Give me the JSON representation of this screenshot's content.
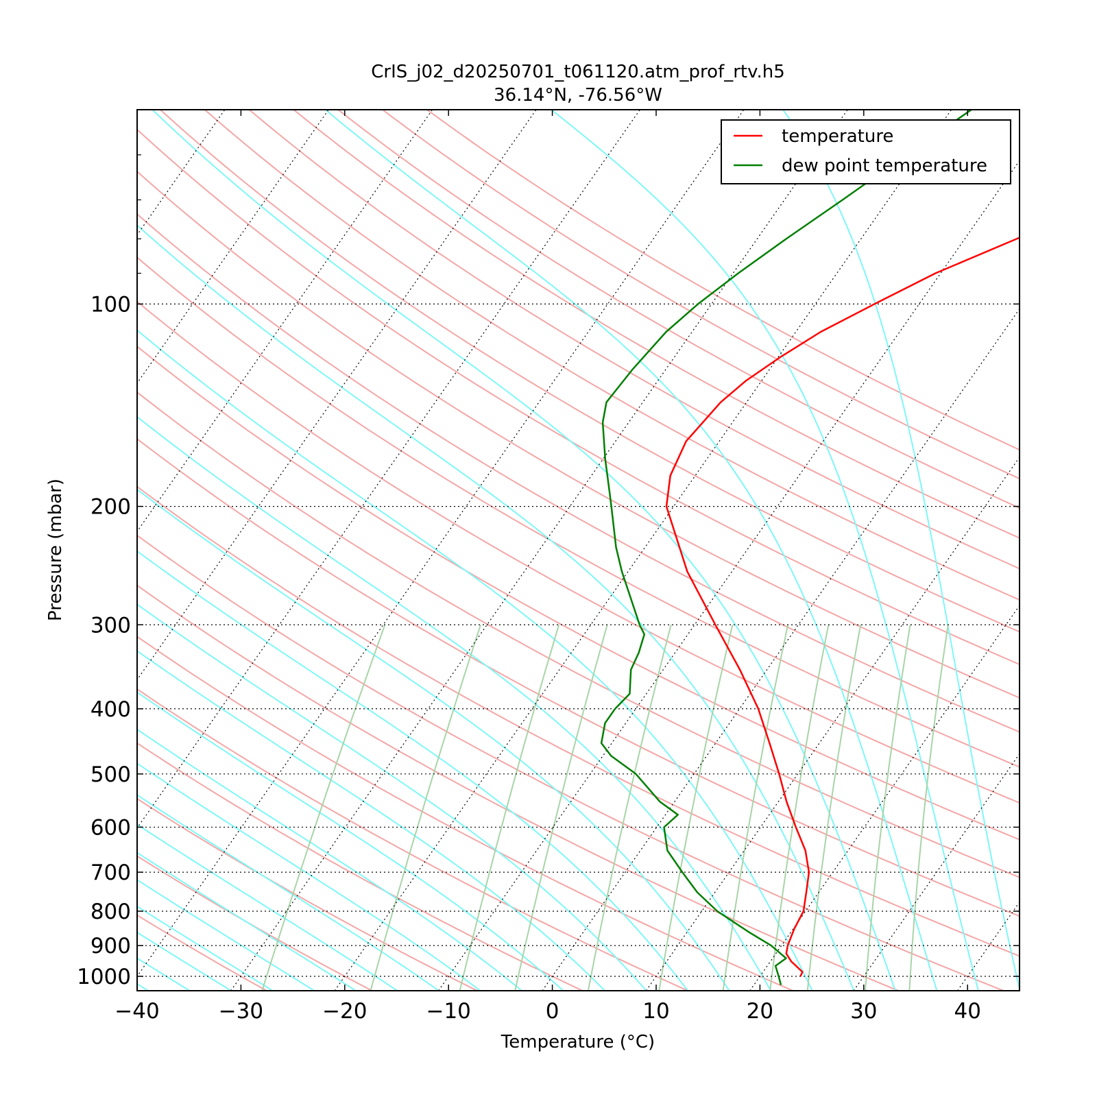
{
  "chart_data": {
    "type": "line",
    "chart_kind": "skew-T log-p",
    "title": "CrIS_j02_d20250701_t061120.atm_prof_rtv.h5",
    "subtitle": "36.14°N, -76.56°W",
    "xlabel": "Temperature (°C)",
    "ylabel": "Pressure (mbar)",
    "xlim": [
      -40,
      45
    ],
    "ylim": [
      1050,
      50
    ],
    "y_scale": "log",
    "xticks": [
      -40,
      -30,
      -20,
      -10,
      0,
      10,
      20,
      30,
      40
    ],
    "xtick_labels": [
      "−40",
      "−30",
      "−20",
      "−10",
      "0",
      "10",
      "20",
      "30",
      "40"
    ],
    "yticks": [
      100,
      200,
      300,
      400,
      500,
      600,
      700,
      800,
      900,
      1000
    ],
    "ytick_labels": [
      "100",
      "200",
      "300",
      "400",
      "500",
      "600",
      "700",
      "800",
      "900",
      "1000"
    ],
    "grid": "dotted",
    "legend_position": "top-right",
    "colors": {
      "temperature": "#ff0000",
      "dewpoint": "#007f00",
      "dry_adiabat": "#f4a6a6",
      "moist_adiabat": "#7ff7f7",
      "mixing_ratio": "#a8d4a8",
      "grid": "#000000"
    },
    "series": [
      {
        "name": "temperature",
        "points": [
          {
            "p": 1000,
            "t": 23.9
          },
          {
            "p": 985,
            "t": 23.8
          },
          {
            "p": 950,
            "t": 22.0
          },
          {
            "p": 925,
            "t": 21.0
          },
          {
            "p": 900,
            "t": 20.6
          },
          {
            "p": 850,
            "t": 20.1
          },
          {
            "p": 800,
            "t": 19.8
          },
          {
            "p": 750,
            "t": 18.8
          },
          {
            "p": 700,
            "t": 17.7
          },
          {
            "p": 650,
            "t": 15.9
          },
          {
            "p": 600,
            "t": 13.4
          },
          {
            "p": 550,
            "t": 10.8
          },
          {
            "p": 500,
            "t": 8.2
          },
          {
            "p": 450,
            "t": 5.2
          },
          {
            "p": 400,
            "t": 1.8
          },
          {
            "p": 350,
            "t": -2.6
          },
          {
            "p": 300,
            "t": -8.0
          },
          {
            "p": 250,
            "t": -14.3
          },
          {
            "p": 200,
            "t": -20.7
          },
          {
            "p": 180,
            "t": -22.4
          },
          {
            "p": 160,
            "t": -23.2
          },
          {
            "p": 140,
            "t": -22.5
          },
          {
            "p": 130,
            "t": -21.5
          },
          {
            "p": 120,
            "t": -19.8
          },
          {
            "p": 110,
            "t": -17.6
          },
          {
            "p": 100,
            "t": -14.3
          },
          {
            "p": 90,
            "t": -10.5
          },
          {
            "p": 80,
            "t": -5.0
          },
          {
            "p": 70,
            "t": 1.5
          },
          {
            "p": 60,
            "t": 8.5
          },
          {
            "p": 50,
            "t": 15.0
          }
        ]
      },
      {
        "name": "dew point temperature",
        "points": [
          {
            "p": 1030,
            "t": 22.6
          },
          {
            "p": 1000,
            "t": 21.8
          },
          {
            "p": 965,
            "t": 20.8
          },
          {
            "p": 940,
            "t": 21.3
          },
          {
            "p": 900,
            "t": 19.0
          },
          {
            "p": 860,
            "t": 16.0
          },
          {
            "p": 800,
            "t": 11.5
          },
          {
            "p": 750,
            "t": 8.3
          },
          {
            "p": 700,
            "t": 5.5
          },
          {
            "p": 650,
            "t": 2.6
          },
          {
            "p": 600,
            "t": 0.7
          },
          {
            "p": 575,
            "t": 1.2
          },
          {
            "p": 550,
            "t": -1.4
          },
          {
            "p": 500,
            "t": -5.6
          },
          {
            "p": 470,
            "t": -9.2
          },
          {
            "p": 450,
            "t": -11.0
          },
          {
            "p": 420,
            "t": -12.0
          },
          {
            "p": 400,
            "t": -12.0
          },
          {
            "p": 380,
            "t": -11.6
          },
          {
            "p": 350,
            "t": -13.1
          },
          {
            "p": 330,
            "t": -13.5
          },
          {
            "p": 310,
            "t": -14.2
          },
          {
            "p": 300,
            "t": -15.3
          },
          {
            "p": 250,
            "t": -20.6
          },
          {
            "p": 230,
            "t": -22.8
          },
          {
            "p": 200,
            "t": -26.0
          },
          {
            "p": 190,
            "t": -27.2
          },
          {
            "p": 170,
            "t": -29.8
          },
          {
            "p": 150,
            "t": -32.5
          },
          {
            "p": 140,
            "t": -33.5
          },
          {
            "p": 125,
            "t": -33.2
          },
          {
            "p": 110,
            "t": -32.5
          },
          {
            "p": 100,
            "t": -31.3
          },
          {
            "p": 90,
            "t": -29.5
          },
          {
            "p": 80,
            "t": -27.2
          },
          {
            "p": 70,
            "t": -24.4
          },
          {
            "p": 60,
            "t": -21.3
          },
          {
            "p": 50,
            "t": -17.5
          }
        ]
      }
    ],
    "legend": [
      "temperature",
      "dew point temperature"
    ]
  }
}
